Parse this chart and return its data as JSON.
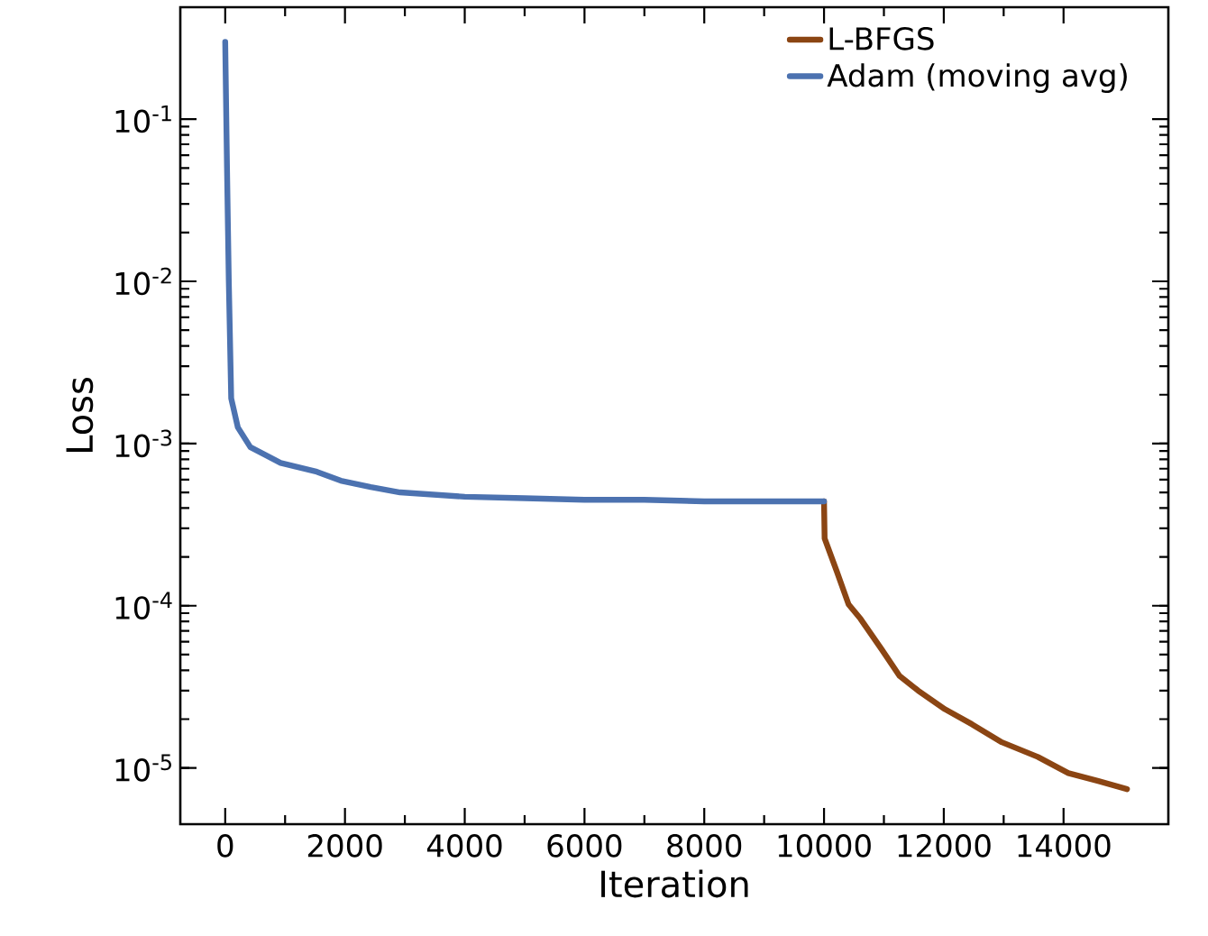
{
  "chart_data": {
    "type": "line",
    "xlabel": "Iteration",
    "ylabel": "Loss",
    "log": "y",
    "legend": "top right",
    "line_style": "solid",
    "marker": "none",
    "xlim": [
      -750,
      15750
    ],
    "xticks": [
      0,
      2000,
      4000,
      6000,
      8000,
      10000,
      12000,
      14000
    ],
    "ylim": [
      4.5e-06,
      0.49
    ],
    "yticks": [
      {
        "value": 1e-05,
        "label": "10$^{-5}$"
      },
      {
        "value": 0.0001,
        "label": "10$^{-4}$"
      },
      {
        "value": 0.001,
        "label": "10$^{-3}$"
      },
      {
        "value": 0.01,
        "label": "10$^{-2}$"
      },
      {
        "value": 0.1,
        "label": "10$^{-1}$"
      }
    ],
    "series": [
      {
        "name": "L-BFGS",
        "color": "#8b4513",
        "x": [
          10000,
          10010,
          10210,
          10410,
          10610,
          10960,
          11260,
          11570,
          12020,
          12470,
          12970,
          13570,
          14080,
          14580,
          15060
        ],
        "values": [
          0.00044,
          0.00026,
          0.000164,
          0.000102,
          8.3e-05,
          5.4e-05,
          3.7e-05,
          3e-05,
          2.3e-05,
          1.86e-05,
          1.44e-05,
          1.17e-05,
          9.3e-06,
          8.3e-06,
          7.4e-06
        ]
      },
      {
        "name": "Adam (moving avg)",
        "color": "#4c72b0",
        "x": [
          0,
          30,
          60,
          100,
          210,
          420,
          925,
          1530,
          1930,
          2430,
          2920,
          4000,
          5000,
          6000,
          7000,
          8000,
          9000,
          10000
        ],
        "values": [
          0.3,
          0.05,
          0.01,
          0.0019,
          0.00126,
          0.00095,
          0.00076,
          0.00067,
          0.00059,
          0.00054,
          0.0005,
          0.00047,
          0.00046,
          0.00045,
          0.00045,
          0.00044,
          0.00044,
          0.00044
        ]
      }
    ]
  }
}
